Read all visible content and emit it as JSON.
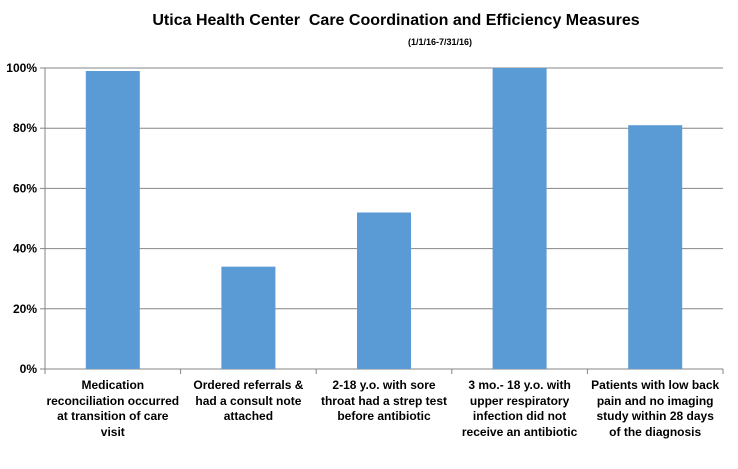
{
  "chart_data": {
    "type": "bar",
    "title": "Utica Health Center  Care Coordination and Efficiency Measures",
    "subtitle": "(1/1/16-7/31/16)",
    "categories": [
      [
        "Medication",
        "reconciliation occurred",
        "at transition of care",
        "visit"
      ],
      [
        "Ordered referrals &",
        "had a consult note",
        "attached"
      ],
      [
        "2-18 y.o. with sore",
        "throat had a strep test",
        "before antibiotic"
      ],
      [
        "3 mo.- 18 y.o. with",
        "upper respiratory",
        "infection did not",
        "receive an antibiotic"
      ],
      [
        "Patients with low back",
        "pain and no imaging",
        "study within 28 days",
        "of the diagnosis"
      ]
    ],
    "values": [
      99,
      34,
      52,
      100,
      81
    ],
    "ylim": [
      0,
      100
    ],
    "yticks": [
      "0%",
      "20%",
      "40%",
      "60%",
      "80%",
      "100%"
    ],
    "grid": true,
    "bar_color": "#5b9bd5"
  }
}
